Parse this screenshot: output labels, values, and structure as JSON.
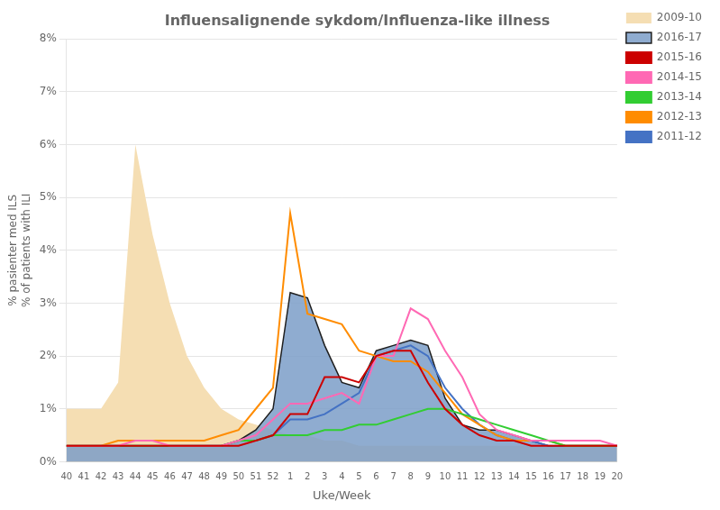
{
  "chart_data": {
    "type": "line",
    "title": "Influensalignende sykdom/Influenza-like illness",
    "xlabel": "Uke/Week",
    "ylabel": "% pasienter med ILS\n% of patients with ILI",
    "categories": [
      "40",
      "41",
      "42",
      "43",
      "44",
      "45",
      "46",
      "47",
      "48",
      "49",
      "50",
      "51",
      "52",
      "1",
      "2",
      "3",
      "4",
      "5",
      "6",
      "7",
      "8",
      "9",
      "10",
      "11",
      "12",
      "13",
      "14",
      "15",
      "16",
      "17",
      "18",
      "19",
      "20"
    ],
    "series": [
      {
        "name": "2009-10",
        "type": "area",
        "color": "#F5DEB3",
        "values": [
          0.01,
          0.01,
          0.01,
          0.015,
          0.06,
          0.043,
          0.03,
          0.02,
          0.014,
          0.01,
          0.008,
          0.007,
          0.006,
          0.005,
          0.005,
          0.004,
          0.004,
          0.003,
          0.003,
          0.003,
          0.003,
          0.003,
          0.003,
          0.003,
          0.003,
          0.003,
          0.003,
          0.003,
          0.003,
          0.003,
          0.003,
          0.003,
          0.003
        ]
      },
      {
        "name": "2016-17",
        "type": "area",
        "color": "#7B9EC8",
        "values": [
          0.003,
          0.003,
          0.003,
          0.003,
          0.003,
          0.003,
          0.003,
          0.003,
          0.003,
          0.003,
          0.004,
          0.006,
          0.01,
          0.032,
          0.031,
          0.022,
          0.015,
          0.014,
          0.021,
          0.022,
          0.023,
          0.022,
          0.012,
          0.007,
          0.006,
          0.006,
          0.005,
          0.004,
          0.003,
          0.003,
          0.003,
          0.003,
          0.003
        ]
      },
      {
        "name": "2015-16",
        "type": "line",
        "color": "#CC0000",
        "values": [
          0.003,
          0.003,
          0.003,
          0.003,
          0.003,
          0.003,
          0.003,
          0.003,
          0.003,
          0.003,
          0.003,
          0.004,
          0.005,
          0.009,
          0.009,
          0.016,
          0.016,
          0.015,
          0.02,
          0.021,
          0.021,
          0.015,
          0.01,
          0.007,
          0.005,
          0.004,
          0.004,
          0.003,
          0.003,
          0.003,
          0.003,
          0.003,
          0.003
        ]
      },
      {
        "name": "2014-15",
        "type": "line",
        "color": "#FF69B4",
        "values": [
          0.003,
          0.003,
          0.003,
          0.003,
          0.004,
          0.004,
          0.003,
          0.003,
          0.003,
          0.003,
          0.004,
          0.005,
          0.008,
          0.011,
          0.011,
          0.012,
          0.013,
          0.011,
          0.02,
          0.02,
          0.029,
          0.027,
          0.021,
          0.016,
          0.009,
          0.006,
          0.005,
          0.004,
          0.004,
          0.004,
          0.004,
          0.004,
          0.003
        ]
      },
      {
        "name": "2013-14",
        "type": "line",
        "color": "#32CD32",
        "values": [
          0.003,
          0.003,
          0.003,
          0.003,
          0.003,
          0.003,
          0.003,
          0.003,
          0.003,
          0.003,
          0.004,
          0.004,
          0.005,
          0.005,
          0.005,
          0.006,
          0.006,
          0.007,
          0.007,
          0.008,
          0.009,
          0.01,
          0.01,
          0.009,
          0.008,
          0.007,
          0.006,
          0.005,
          0.004,
          0.003,
          0.003,
          0.003,
          0.003
        ]
      },
      {
        "name": "2012-13",
        "type": "line",
        "color": "#FF8C00",
        "values": [
          0.003,
          0.003,
          0.003,
          0.004,
          0.004,
          0.004,
          0.004,
          0.004,
          0.004,
          0.005,
          0.006,
          0.01,
          0.014,
          0.047,
          0.028,
          0.027,
          0.026,
          0.021,
          0.02,
          0.019,
          0.019,
          0.017,
          0.013,
          0.009,
          0.007,
          0.005,
          0.004,
          0.004,
          0.004,
          0.003,
          0.003,
          0.003,
          0.003
        ]
      },
      {
        "name": "2011-12",
        "type": "line",
        "color": "#4472C4",
        "values": [
          0.003,
          0.003,
          0.003,
          0.003,
          0.003,
          0.003,
          0.003,
          0.003,
          0.003,
          0.003,
          0.004,
          0.004,
          0.005,
          0.008,
          0.008,
          0.009,
          0.011,
          0.013,
          0.02,
          0.021,
          0.022,
          0.02,
          0.014,
          0.01,
          0.007,
          0.005,
          0.004,
          0.004,
          0.003,
          0.003,
          0.003,
          0.003,
          0.003
        ]
      }
    ],
    "ylim": [
      0,
      0.08
    ],
    "yticks": [
      {
        "value": 0,
        "label": "0%"
      },
      {
        "value": 0.01,
        "label": "1%"
      },
      {
        "value": 0.02,
        "label": "2%"
      },
      {
        "value": 0.03,
        "label": "3%"
      },
      {
        "value": 0.04,
        "label": "4%"
      },
      {
        "value": 0.05,
        "label": "5%"
      },
      {
        "value": 0.06,
        "label": "6%"
      },
      {
        "value": 0.07,
        "label": "7%"
      },
      {
        "value": 0.08,
        "label": "8%"
      }
    ],
    "grid": true,
    "legend": "upper right"
  }
}
